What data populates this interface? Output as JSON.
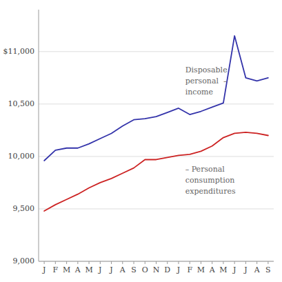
{
  "chart_data": {
    "type": "line",
    "categories": [
      "J",
      "F",
      "M",
      "A",
      "M",
      "J",
      "J",
      "A",
      "S",
      "O",
      "N",
      "D",
      "J",
      "F",
      "M",
      "A",
      "M",
      "J",
      "J",
      "A",
      "S"
    ],
    "series": [
      {
        "color": "#3333aa",
        "values": [
          9960,
          10060,
          10080,
          10080,
          10120,
          10170,
          10220,
          10290,
          10350,
          10360,
          10380,
          10420,
          10460,
          10400,
          10430,
          10470,
          10510,
          11150,
          10750,
          10720,
          10750
        ]
      },
      {
        "color": "#cc2222",
        "values": [
          9480,
          9540,
          9590,
          9640,
          9700,
          9750,
          9790,
          9840,
          9890,
          9970,
          9970,
          9990,
          10010,
          10020,
          10050,
          10100,
          10180,
          10220,
          10230,
          10220,
          10200
        ]
      }
    ],
    "ylim": [
      9000,
      11400
    ],
    "yticks": [
      {
        "value": 9000,
        "label": "9,000"
      },
      {
        "value": 9500,
        "label": "9,500"
      },
      {
        "value": 10000,
        "label": "10,000"
      },
      {
        "value": 10500,
        "label": "10,500"
      },
      {
        "value": 11000,
        "label": "$11,000"
      }
    ],
    "grid": true,
    "annotations": [
      "Disposable",
      "personal  –",
      "income",
      "– Personal",
      "consumption",
      "expenditures"
    ]
  }
}
